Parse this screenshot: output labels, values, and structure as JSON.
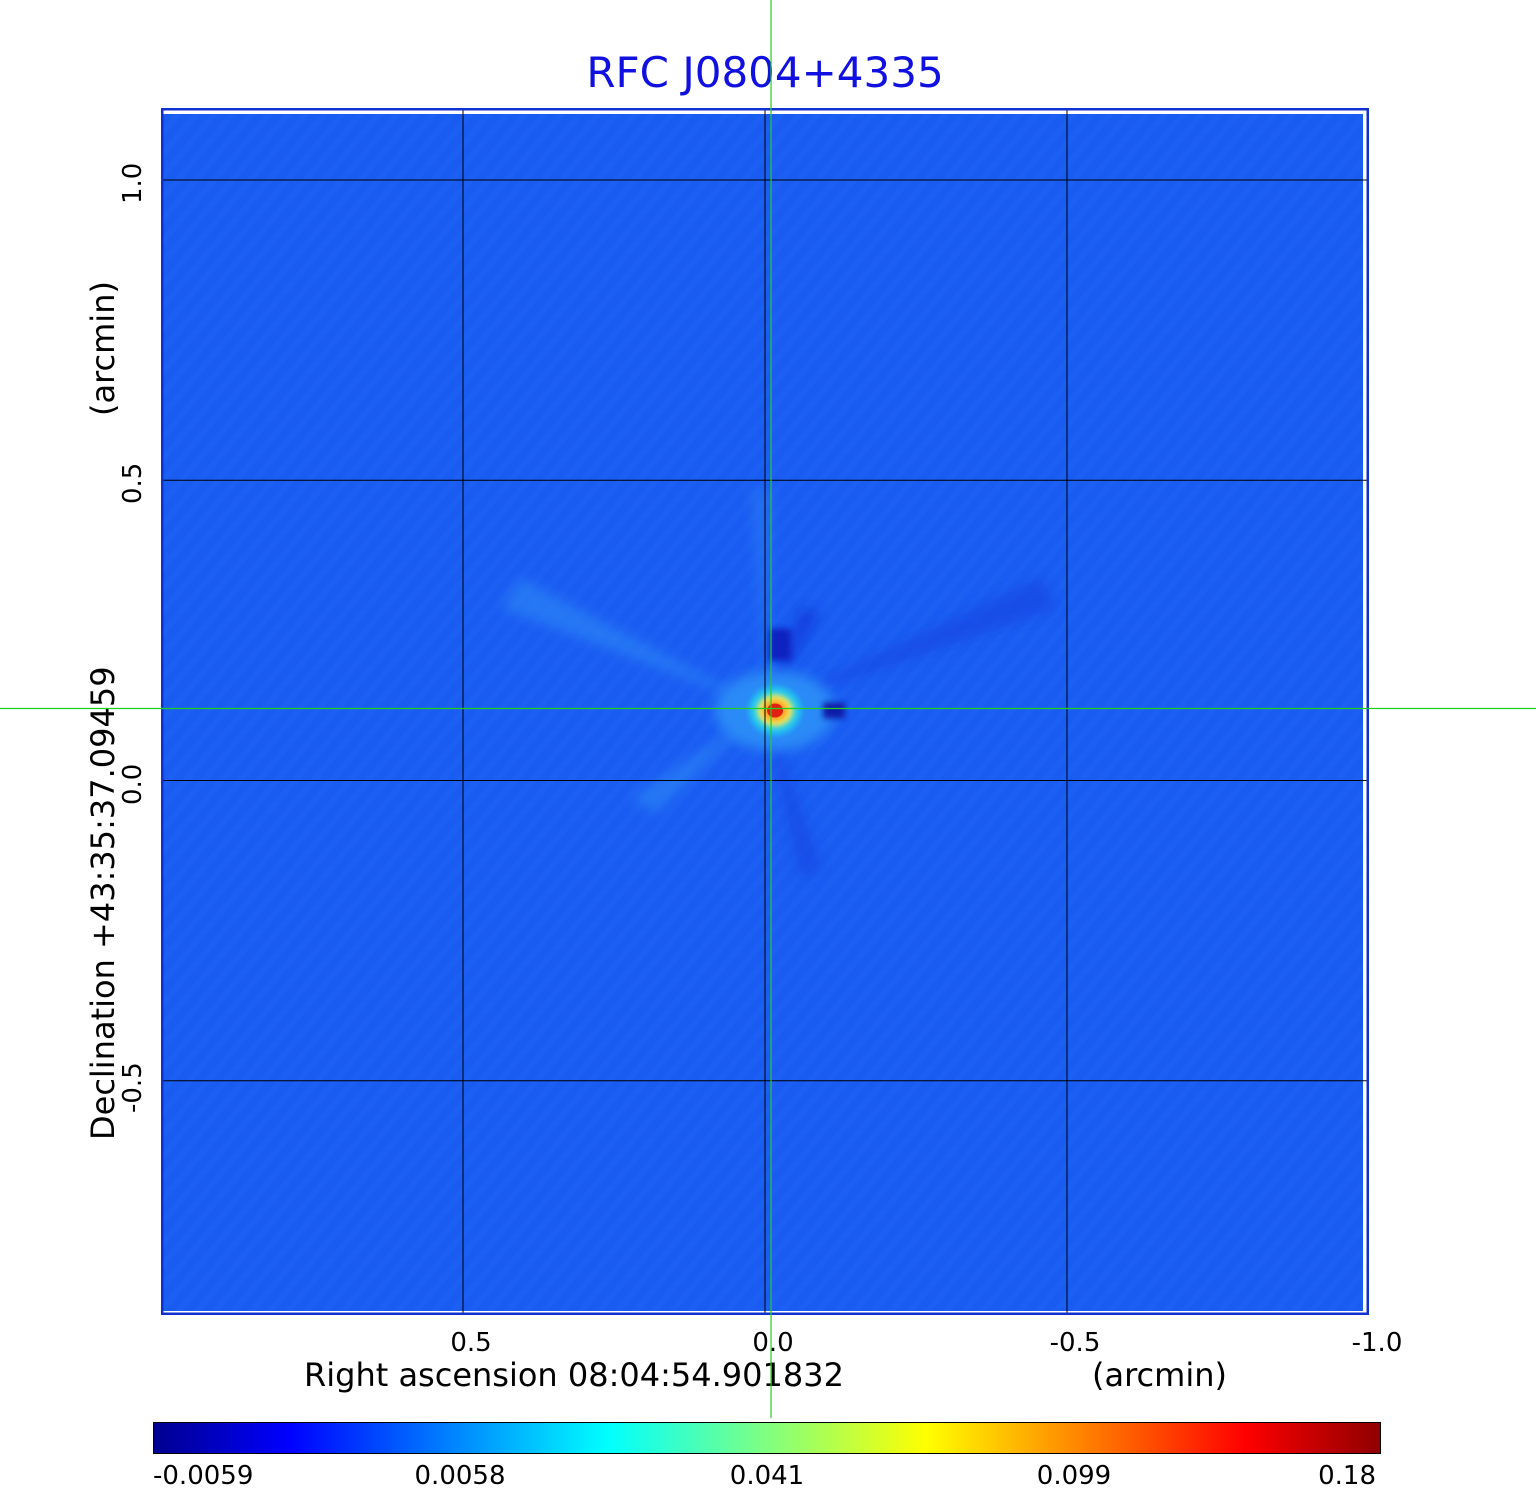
{
  "chart_data": {
    "type": "heatmap",
    "title": "RFC J0804+4335",
    "xlabel": "Right ascension  08:04:54.901832",
    "xunit": "(arcmin)",
    "ylabel": "Declination  +43:35:37.09459",
    "yunit": "(arcmin)",
    "x_ticks": [
      {
        "value": 0.5,
        "label": "0.5"
      },
      {
        "value": 0.0,
        "label": "0.0"
      },
      {
        "value": -0.5,
        "label": "-0.5"
      },
      {
        "value": -1.0,
        "label": "-1.0"
      }
    ],
    "y_ticks": [
      {
        "value": 1.0,
        "label": "1.0"
      },
      {
        "value": 0.5,
        "label": "0.5"
      },
      {
        "value": 0.0,
        "label": "0.0"
      },
      {
        "value": -0.5,
        "label": "-0.5"
      }
    ],
    "xlim": [
      1.0,
      -1.0
    ],
    "ylim": [
      -0.89,
      1.12
    ],
    "grid": true,
    "crosshair": {
      "x": -0.01,
      "y": 0.12
    },
    "peak": {
      "x": -0.01,
      "y": 0.12,
      "value": 0.18
    },
    "colorbar": {
      "colormap": "jet",
      "ticks": [
        "-0.0059",
        "0.0058",
        "0.041",
        "0.099",
        "0.18"
      ]
    },
    "colors": {
      "title": "#1010e0",
      "frame": "#1030d0",
      "background_field": "#1a5cf2",
      "crosshair": "#20d020"
    }
  }
}
